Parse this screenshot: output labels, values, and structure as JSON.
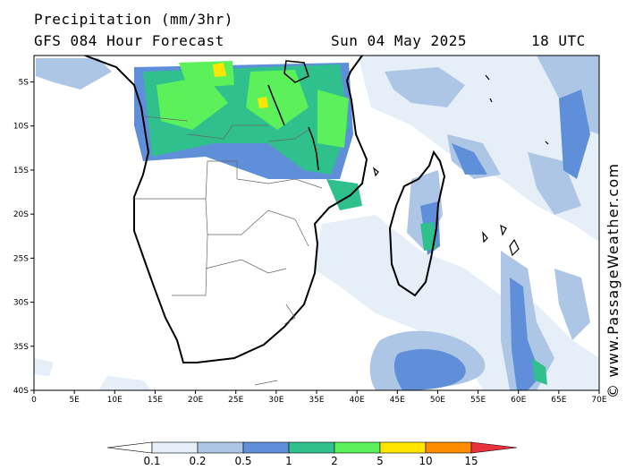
{
  "header": {
    "title": "Precipitation (mm/3hr)",
    "model_line": "GFS 084 Hour Forecast",
    "date": "Sun 04 May 2025",
    "time": "18 UTC"
  },
  "map": {
    "lat_labels": [
      "5S",
      "10S",
      "15S",
      "20S",
      "25S",
      "30S",
      "35S",
      "40S"
    ],
    "lon_labels": [
      "0",
      "5E",
      "10E",
      "15E",
      "20E",
      "25E",
      "30E",
      "35E",
      "40E",
      "45E",
      "50E",
      "55E",
      "60E",
      "65E",
      "70E"
    ],
    "lat_range": [
      -2,
      -40
    ],
    "lon_range": [
      0,
      70
    ]
  },
  "watermark": "© www.PassageWeather.com",
  "legend": {
    "labels": [
      "0.1",
      "0.2",
      "0.5",
      "1",
      "2",
      "5",
      "10",
      "15"
    ],
    "colors": [
      "#e6eef8",
      "#aec6e6",
      "#5f8fd8",
      "#2fc08e",
      "#5cf05a",
      "#ffe600",
      "#ff8c00",
      "#e8323c"
    ]
  }
}
